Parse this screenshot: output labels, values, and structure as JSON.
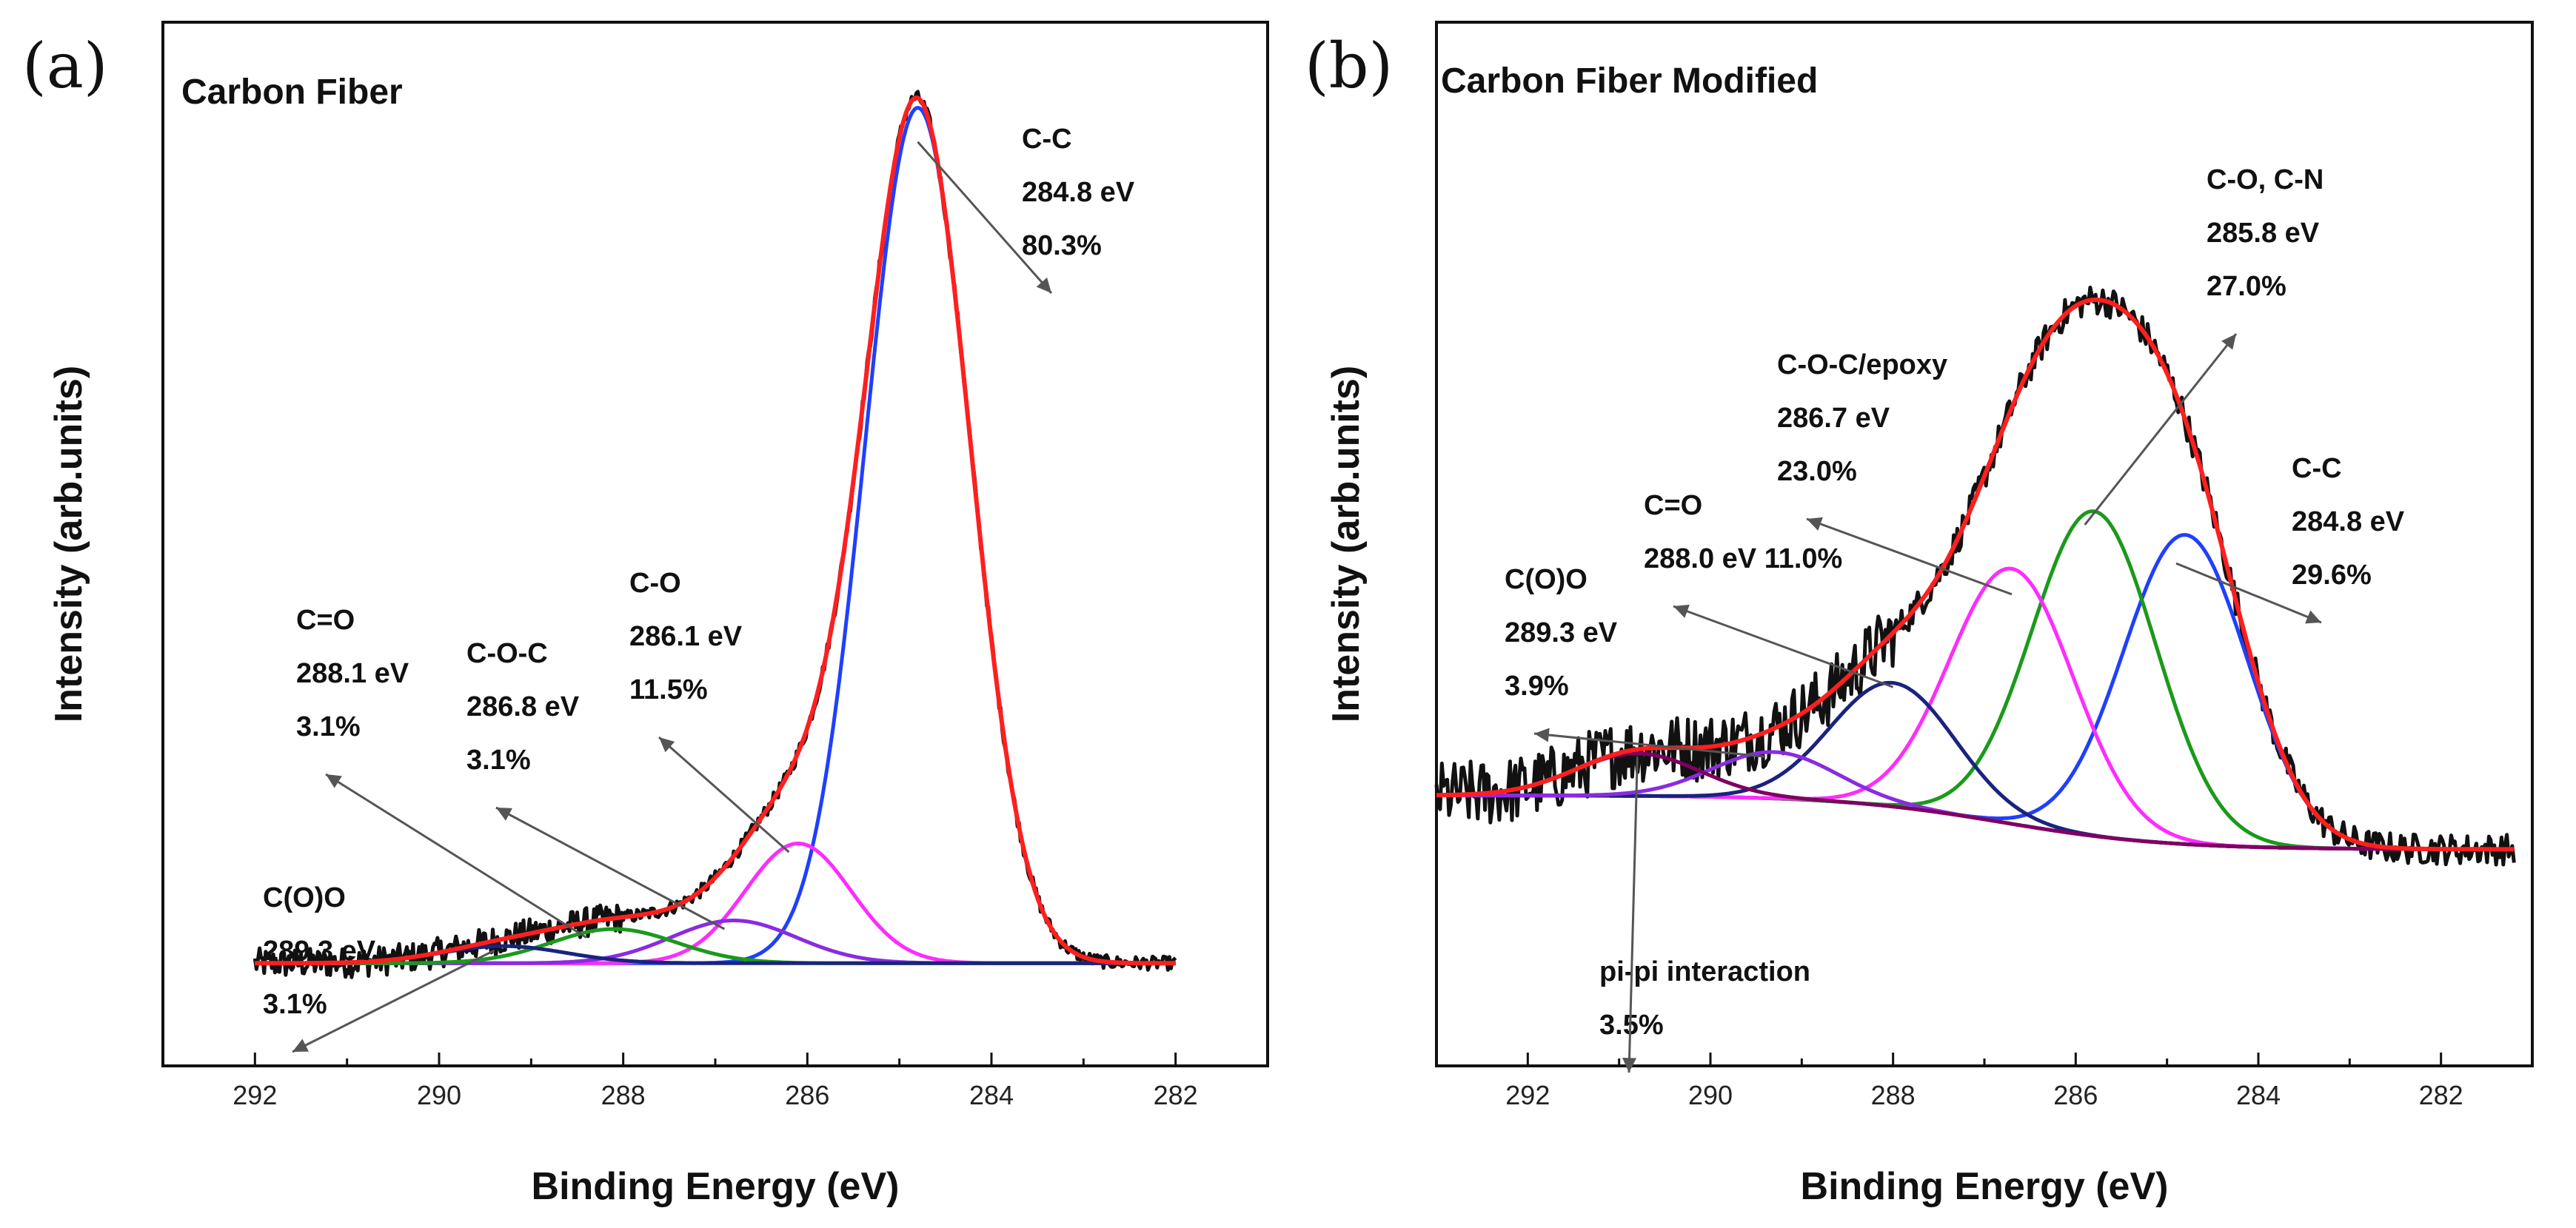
{
  "chart_data": [
    {
      "type": "line",
      "panel_label": "(a)",
      "title": "Carbon Fiber",
      "xlabel": "Binding Energy (eV)",
      "ylabel": "Intensity (arb.units)",
      "xlim": [
        293,
        281
      ],
      "ylim": [
        -0.12,
        1.1
      ],
      "xticks": [
        292,
        290,
        288,
        286,
        284,
        282
      ],
      "tick_labels": [
        "292",
        "290",
        "288",
        "286",
        "284",
        "282"
      ],
      "x_range": [
        282.0,
        292.0
      ],
      "baseline_left": 0.0,
      "baseline_right": 0.0,
      "noise_amplitude": 0.008,
      "series": [
        {
          "name": "raw data",
          "role": "raw",
          "color": "#111111"
        },
        {
          "name": "C-C",
          "role": "component",
          "color": "#1f3fff",
          "center": 284.8,
          "amplitude": 1.0,
          "fwhm": 1.35
        },
        {
          "name": "C-O",
          "role": "component",
          "color": "#ff2bff",
          "center": 286.1,
          "amplitude": 0.14,
          "fwhm": 1.35
        },
        {
          "name": "C-O-C",
          "role": "component",
          "color": "#8a2be2",
          "center": 286.8,
          "amplitude": 0.05,
          "fwhm": 1.6
        },
        {
          "name": "C=O",
          "role": "component",
          "color": "#1a9a1a",
          "center": 288.1,
          "amplitude": 0.04,
          "fwhm": 1.6
        },
        {
          "name": "C(O)O",
          "role": "component",
          "color": "#1a237e",
          "center": 289.3,
          "amplitude": 0.02,
          "fwhm": 1.6
        },
        {
          "name": "background",
          "role": "baseline",
          "color": "#8b1a1a"
        },
        {
          "name": "envelope",
          "role": "envelope",
          "color": "#ff1f1f"
        }
      ],
      "annotations": [
        {
          "lines": [
            "C-C",
            "284.8 eV",
            "80.3%"
          ],
          "target": [
            284.8,
            0.96
          ]
        },
        {
          "lines": [
            "C-O",
            "286.1 eV",
            "11.5%"
          ],
          "target": [
            286.2,
            0.13
          ]
        },
        {
          "lines": [
            "C-O-C",
            "286.8 eV",
            "3.1%"
          ],
          "target": [
            286.9,
            0.04
          ]
        },
        {
          "lines": [
            "C=O",
            "288.1 eV",
            "3.1%"
          ],
          "target": [
            288.4,
            0.03
          ]
        },
        {
          "lines": [
            "C(O)O",
            "289.3 eV",
            "3.1%"
          ],
          "target": [
            289.4,
            0.015
          ]
        }
      ]
    },
    {
      "type": "line",
      "panel_label": "(b)",
      "title": "Carbon Fiber Modified",
      "xlabel": "Binding Energy (eV)",
      "ylabel": "Intensity (arb.units)",
      "xlim": [
        293,
        281
      ],
      "ylim": [
        -0.35,
        1.0
      ],
      "xticks": [
        292,
        290,
        288,
        286,
        284,
        282
      ],
      "tick_labels": [
        "292",
        "290",
        "288",
        "286",
        "284",
        "282"
      ],
      "x_range": [
        281.2,
        293.0
      ],
      "baseline_left": 0.0,
      "baseline_right": -0.07,
      "noise_amplitude": 0.02,
      "series": [
        {
          "name": "raw data",
          "role": "raw",
          "color": "#111111"
        },
        {
          "name": "C-C",
          "role": "component",
          "color": "#1f3fff",
          "center": 284.8,
          "amplitude": 0.4,
          "fwhm": 1.6
        },
        {
          "name": "C-O, C-N",
          "role": "component",
          "color": "#1a9a1a",
          "center": 285.8,
          "amplitude": 0.42,
          "fwhm": 1.6
        },
        {
          "name": "C-O-C/epoxy",
          "role": "component",
          "color": "#ff2bff",
          "center": 286.7,
          "amplitude": 0.33,
          "fwhm": 1.6
        },
        {
          "name": "C=O",
          "role": "component",
          "color": "#1a237e",
          "center": 288.0,
          "amplitude": 0.16,
          "fwhm": 1.6
        },
        {
          "name": "C(O)O",
          "role": "component",
          "color": "#8a2be2",
          "center": 289.3,
          "amplitude": 0.06,
          "fwhm": 1.6
        },
        {
          "name": "pi-pi interaction",
          "role": "component",
          "color": "#800060",
          "center": 290.8,
          "amplitude": 0.055,
          "fwhm": 1.6
        },
        {
          "name": "background",
          "role": "baseline",
          "color": "#8b1a1a"
        },
        {
          "name": "envelope",
          "role": "envelope",
          "color": "#ff1f1f"
        }
      ],
      "annotations": [
        {
          "lines": [
            "C-O, C-N",
            "285.8 eV",
            "27.0%"
          ],
          "target": [
            285.9,
            0.35
          ]
        },
        {
          "lines": [
            "C-C",
            "284.8 eV",
            "29.6%"
          ],
          "target": [
            284.9,
            0.3
          ]
        },
        {
          "lines": [
            "C-O-C/epoxy",
            "286.7 eV",
            "23.0%"
          ],
          "target": [
            286.7,
            0.26
          ]
        },
        {
          "lines": [
            "C=O",
            "288.0 eV 11.0%"
          ],
          "target": [
            288.0,
            0.14
          ]
        },
        {
          "lines": [
            "C(O)O",
            "289.3 eV",
            "3.9%"
          ],
          "target": [
            289.4,
            0.05
          ]
        },
        {
          "lines": [
            "pi-pi interaction",
            "3.5%"
          ],
          "target": [
            290.8,
            0.05
          ]
        }
      ]
    }
  ]
}
